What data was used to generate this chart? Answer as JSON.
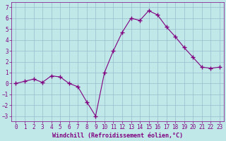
{
  "x": [
    0,
    1,
    2,
    3,
    4,
    5,
    6,
    7,
    8,
    9,
    10,
    11,
    12,
    13,
    14,
    15,
    16,
    17,
    18,
    19,
    20,
    21,
    22,
    23
  ],
  "y": [
    0.0,
    0.2,
    0.4,
    0.1,
    0.7,
    0.6,
    0.0,
    -0.3,
    -1.7,
    -3.0,
    1.0,
    3.0,
    4.7,
    6.0,
    5.8,
    6.7,
    6.3,
    5.2,
    4.3,
    3.3,
    2.4,
    1.5,
    1.4,
    1.5
  ],
  "line_color": "#800080",
  "marker": "+",
  "marker_size": 4,
  "bg_color": "#c0e8e8",
  "grid_color": "#99bbcc",
  "xlabel": "Windchill (Refroidissement éolien,°C)",
  "xlim": [
    -0.5,
    23.5
  ],
  "ylim": [
    -3.5,
    7.5
  ],
  "yticks": [
    -3,
    -2,
    -1,
    0,
    1,
    2,
    3,
    4,
    5,
    6,
    7
  ],
  "xticks": [
    0,
    1,
    2,
    3,
    4,
    5,
    6,
    7,
    8,
    9,
    10,
    11,
    12,
    13,
    14,
    15,
    16,
    17,
    18,
    19,
    20,
    21,
    22,
    23
  ],
  "tick_color": "#800080",
  "label_fontsize": 6.0,
  "tick_fontsize": 5.5
}
